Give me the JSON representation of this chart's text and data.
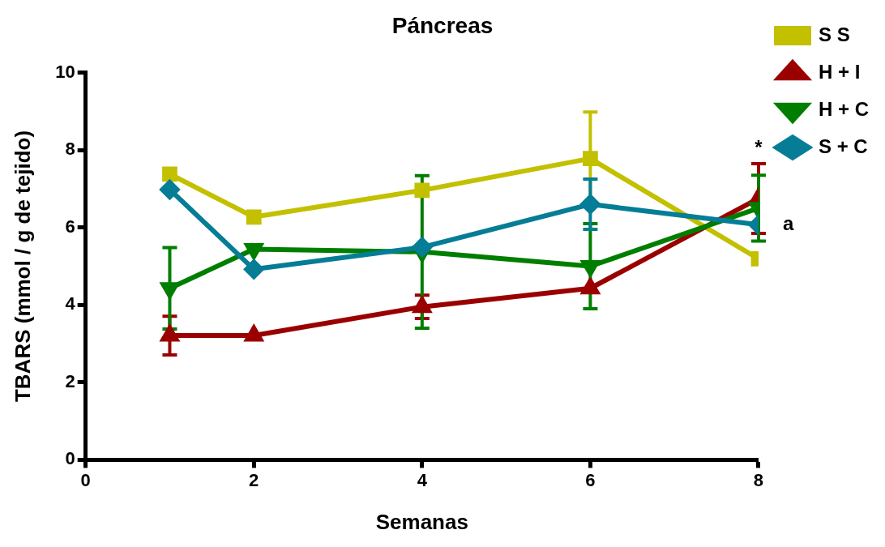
{
  "chart_data": {
    "type": "line",
    "title": "Páncreas",
    "xlabel": "Semanas",
    "ylabel": "TBARS (mmol / g de tejido)",
    "x": [
      1,
      2,
      4,
      6,
      8
    ],
    "series": [
      {
        "name": "S S",
        "color": "#c3c000",
        "marker": "square",
        "values": [
          7.38,
          6.27,
          6.96,
          7.78,
          5.19
        ],
        "errors": [
          null,
          null,
          null,
          1.2,
          null
        ]
      },
      {
        "name": "H + I",
        "color": "#9b0000",
        "marker": "triangle",
        "values": [
          3.21,
          3.21,
          3.95,
          4.43,
          6.75
        ],
        "errors": [
          0.5,
          null,
          0.3,
          null,
          0.9
        ]
      },
      {
        "name": "H + C",
        "color": "#007e00",
        "marker": "triangle-down",
        "values": [
          4.43,
          5.44,
          5.37,
          5.0,
          6.5
        ],
        "errors": [
          1.05,
          null,
          1.97,
          1.1,
          0.85
        ]
      },
      {
        "name": "S + C",
        "color": "#067d96",
        "marker": "diamond",
        "values": [
          6.98,
          4.92,
          5.49,
          6.6,
          6.07
        ],
        "errors": [
          null,
          null,
          null,
          0.65,
          null
        ]
      }
    ],
    "xlim": [
      0,
      8
    ],
    "xticks": [
      0,
      2,
      4,
      6,
      8
    ],
    "ylim": [
      0,
      10
    ],
    "yticks": [
      0,
      2,
      4,
      6,
      8,
      10
    ],
    "grid": false,
    "legend": "right",
    "line_style": "solid",
    "annotations": [
      {
        "text": "*",
        "x": 8,
        "y": 6.75
      },
      {
        "text": "a",
        "x": 8,
        "y": 6.07
      }
    ]
  }
}
